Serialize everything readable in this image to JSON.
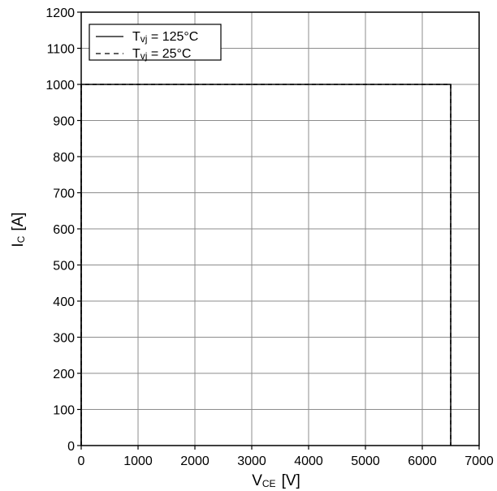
{
  "chart_data": {
    "type": "line",
    "title": "",
    "xlabel": {
      "main": "V",
      "sub": "CE",
      "unit": "[V]"
    },
    "ylabel": {
      "main": "I",
      "sub": "C",
      "unit": "[A]"
    },
    "xlim": [
      0,
      7000
    ],
    "ylim": [
      0,
      1200
    ],
    "xticks": [
      0,
      1000,
      2000,
      3000,
      4000,
      5000,
      6000,
      7000
    ],
    "yticks": [
      0,
      100,
      200,
      300,
      400,
      500,
      600,
      700,
      800,
      900,
      1000,
      1100,
      1200
    ],
    "grid": true,
    "legend_position": "top-left",
    "series": [
      {
        "name": {
          "main": "T",
          "sub": "vj",
          "rest": " = 125°C"
        },
        "style": "solid",
        "color": "#000000",
        "x": [
          0,
          0,
          6500,
          6500
        ],
        "y": [
          0,
          1000,
          1000,
          0
        ]
      },
      {
        "name": {
          "main": "T",
          "sub": "vj",
          "rest": " = 25°C"
        },
        "style": "dashed",
        "color": "#000000",
        "x": [
          0,
          0,
          6500,
          6500
        ],
        "y": [
          0,
          1000,
          1000,
          0
        ]
      }
    ]
  }
}
